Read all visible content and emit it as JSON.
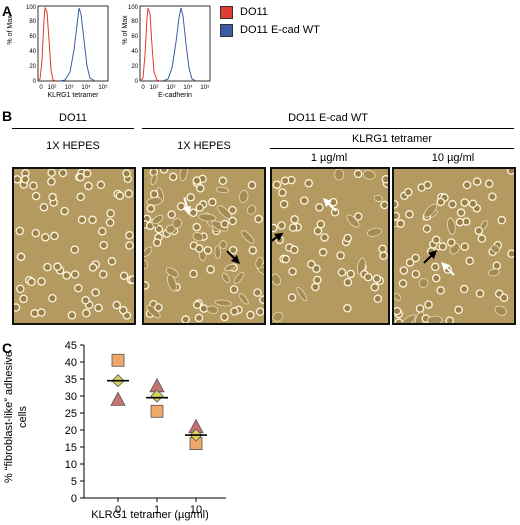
{
  "panels": {
    "a": "A",
    "b": "B",
    "c": "C"
  },
  "histograms": [
    {
      "ylabel": "% of Max",
      "xlabel": "KLRG1 tetramer",
      "yticks": [
        "0",
        "20",
        "40",
        "60",
        "80",
        "100"
      ],
      "xticks": [
        "0",
        "10²",
        "10³",
        "10⁴",
        "10⁵"
      ]
    },
    {
      "ylabel": "% of Max",
      "xlabel": "E-cadherin",
      "yticks": [
        "0",
        "20",
        "40",
        "60",
        "80",
        "100"
      ],
      "xticks": [
        "0",
        "10²",
        "10³",
        "10⁴",
        "10⁵"
      ]
    }
  ],
  "legend": [
    {
      "label": "DO11",
      "color": "#e03c31"
    },
    {
      "label": "DO11 E-cad WT",
      "color": "#3c5aa8"
    }
  ],
  "header_b": {
    "group1": "DO11",
    "group2": "DO11 E-cad WT",
    "tetramer": "KLRG1 tetramer",
    "col1": "1X HEPES",
    "col2": "1X HEPES",
    "col3": "1 µg/ml",
    "col4": "10 µg/ml"
  },
  "colors": {
    "photo_bg": "#b49a61",
    "cell_ring": "#fdf6df",
    "triangle": "#c77170",
    "square": "#f0a86a",
    "diamond": "#d7d25a"
  },
  "chart_data": {
    "type": "scatter",
    "ylabel": "% “fibroblast-like” adhesive cells",
    "xlabel": "KLRG1 tetramer  (µg/ml)",
    "categories": [
      "0",
      "1",
      "10"
    ],
    "ylim": [
      0,
      45
    ],
    "yticks": [
      0,
      5,
      10,
      15,
      20,
      25,
      30,
      35,
      40,
      45
    ],
    "series": [
      {
        "marker": "square",
        "values": [
          40.5,
          25.5,
          16
        ]
      },
      {
        "marker": "triangle",
        "values": [
          29,
          33,
          21
        ]
      },
      {
        "marker": "diamond",
        "values": [
          34.5,
          30,
          18.5
        ]
      }
    ],
    "means": [
      34.5,
      29.5,
      18.5
    ]
  }
}
